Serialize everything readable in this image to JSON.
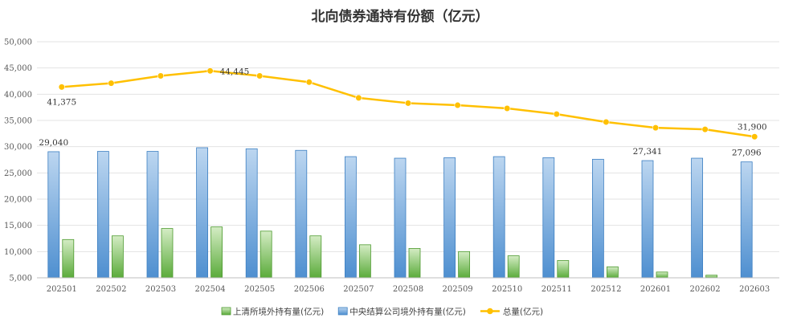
{
  "chart_data": {
    "type": "bar",
    "title": "北向债券通持有份额（亿元）",
    "categories": [
      "202501",
      "202502",
      "202503",
      "202504",
      "202505",
      "202506",
      "202507",
      "202508",
      "202509",
      "202510",
      "202511",
      "202512",
      "202601",
      "202602",
      "202603"
    ],
    "yticks": [
      "5,000",
      "10,000",
      "15,000",
      "20,000",
      "25,000",
      "30,000",
      "35,000",
      "40,000",
      "45,000",
      "50,000"
    ],
    "ylim": [
      5000,
      50000
    ],
    "grid": true,
    "legend_position": "bottom",
    "series": [
      {
        "name": "上清所境外持有量(亿元)",
        "kind": "bar",
        "color": "#7dc35b",
        "values": [
          12300,
          13000,
          14400,
          14700,
          13900,
          13000,
          11300,
          10600,
          10000,
          9200,
          8300,
          7100,
          6100,
          5500,
          4900
        ]
      },
      {
        "name": "中央结算公司境外持有量(亿元)",
        "kind": "bar",
        "color": "#5b9bd5",
        "values": [
          29040,
          29100,
          29100,
          29800,
          29600,
          29300,
          28100,
          27800,
          27900,
          28100,
          27900,
          27600,
          27341,
          27800,
          27096
        ]
      },
      {
        "name": "总量(亿元)",
        "kind": "line",
        "color": "#ffc000",
        "values": [
          41375,
          42100,
          43500,
          44445,
          43500,
          42300,
          39300,
          38300,
          37900,
          37300,
          36200,
          34700,
          33600,
          33300,
          31900
        ]
      }
    ],
    "data_labels": [
      {
        "series": 2,
        "index": 0,
        "text": "41,375",
        "pos": "below"
      },
      {
        "series": 2,
        "index": 3,
        "text": "44,445",
        "pos": "right"
      },
      {
        "series": 2,
        "index": 14,
        "text": "31,900",
        "pos": "above"
      },
      {
        "series": 1,
        "index": 0,
        "text": "29,040",
        "pos": "above"
      },
      {
        "series": 1,
        "index": 12,
        "text": "27,341",
        "pos": "above"
      },
      {
        "series": 1,
        "index": 14,
        "text": "27,096",
        "pos": "above"
      }
    ]
  }
}
